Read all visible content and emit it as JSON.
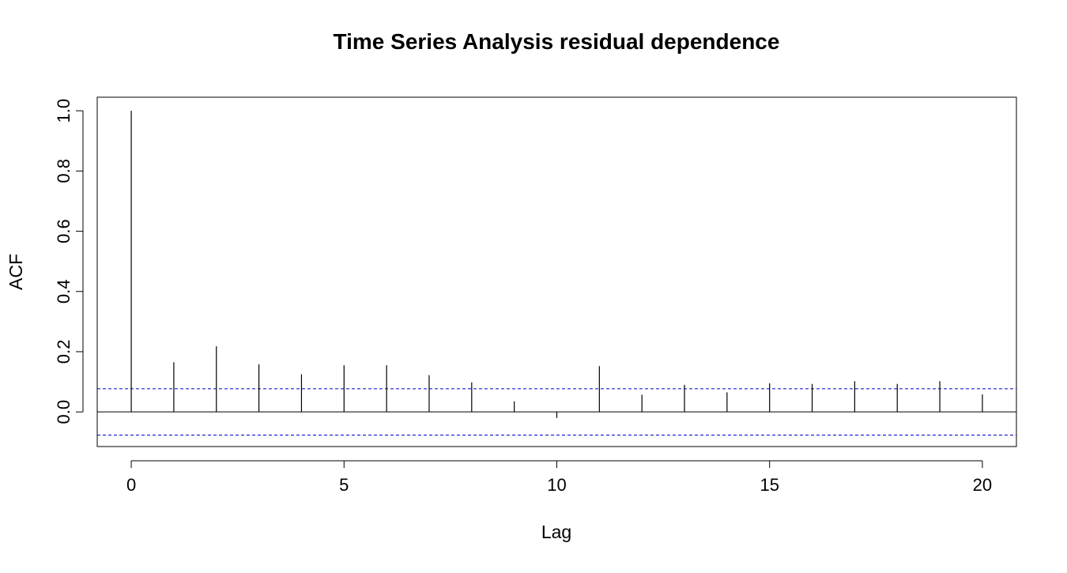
{
  "chart_data": {
    "type": "bar",
    "title": "Time Series Analysis residual dependence",
    "xlabel": "Lag",
    "ylabel": "ACF",
    "x": [
      0,
      1,
      2,
      3,
      4,
      5,
      6,
      7,
      8,
      9,
      10,
      11,
      12,
      13,
      14,
      15,
      16,
      17,
      18,
      19,
      20
    ],
    "values": [
      1.0,
      0.165,
      0.218,
      0.158,
      0.125,
      0.155,
      0.155,
      0.122,
      0.098,
      0.035,
      -0.02,
      0.152,
      0.057,
      0.09,
      0.065,
      0.095,
      0.093,
      0.102,
      0.093,
      0.102,
      0.058
    ],
    "xlim": [
      -0.8,
      20.8
    ],
    "ylim": [
      -0.115,
      1.045
    ],
    "x_ticks": [
      "0",
      "5",
      "10",
      "15",
      "20"
    ],
    "y_ticks": [
      "0.0",
      "0.2",
      "0.4",
      "0.6",
      "0.8",
      "1.0"
    ],
    "confidence_bounds": [
      0.077,
      -0.077
    ],
    "confidence_color": "#0000cc",
    "bar_color": "#000000",
    "grid": false,
    "legend": "none"
  }
}
